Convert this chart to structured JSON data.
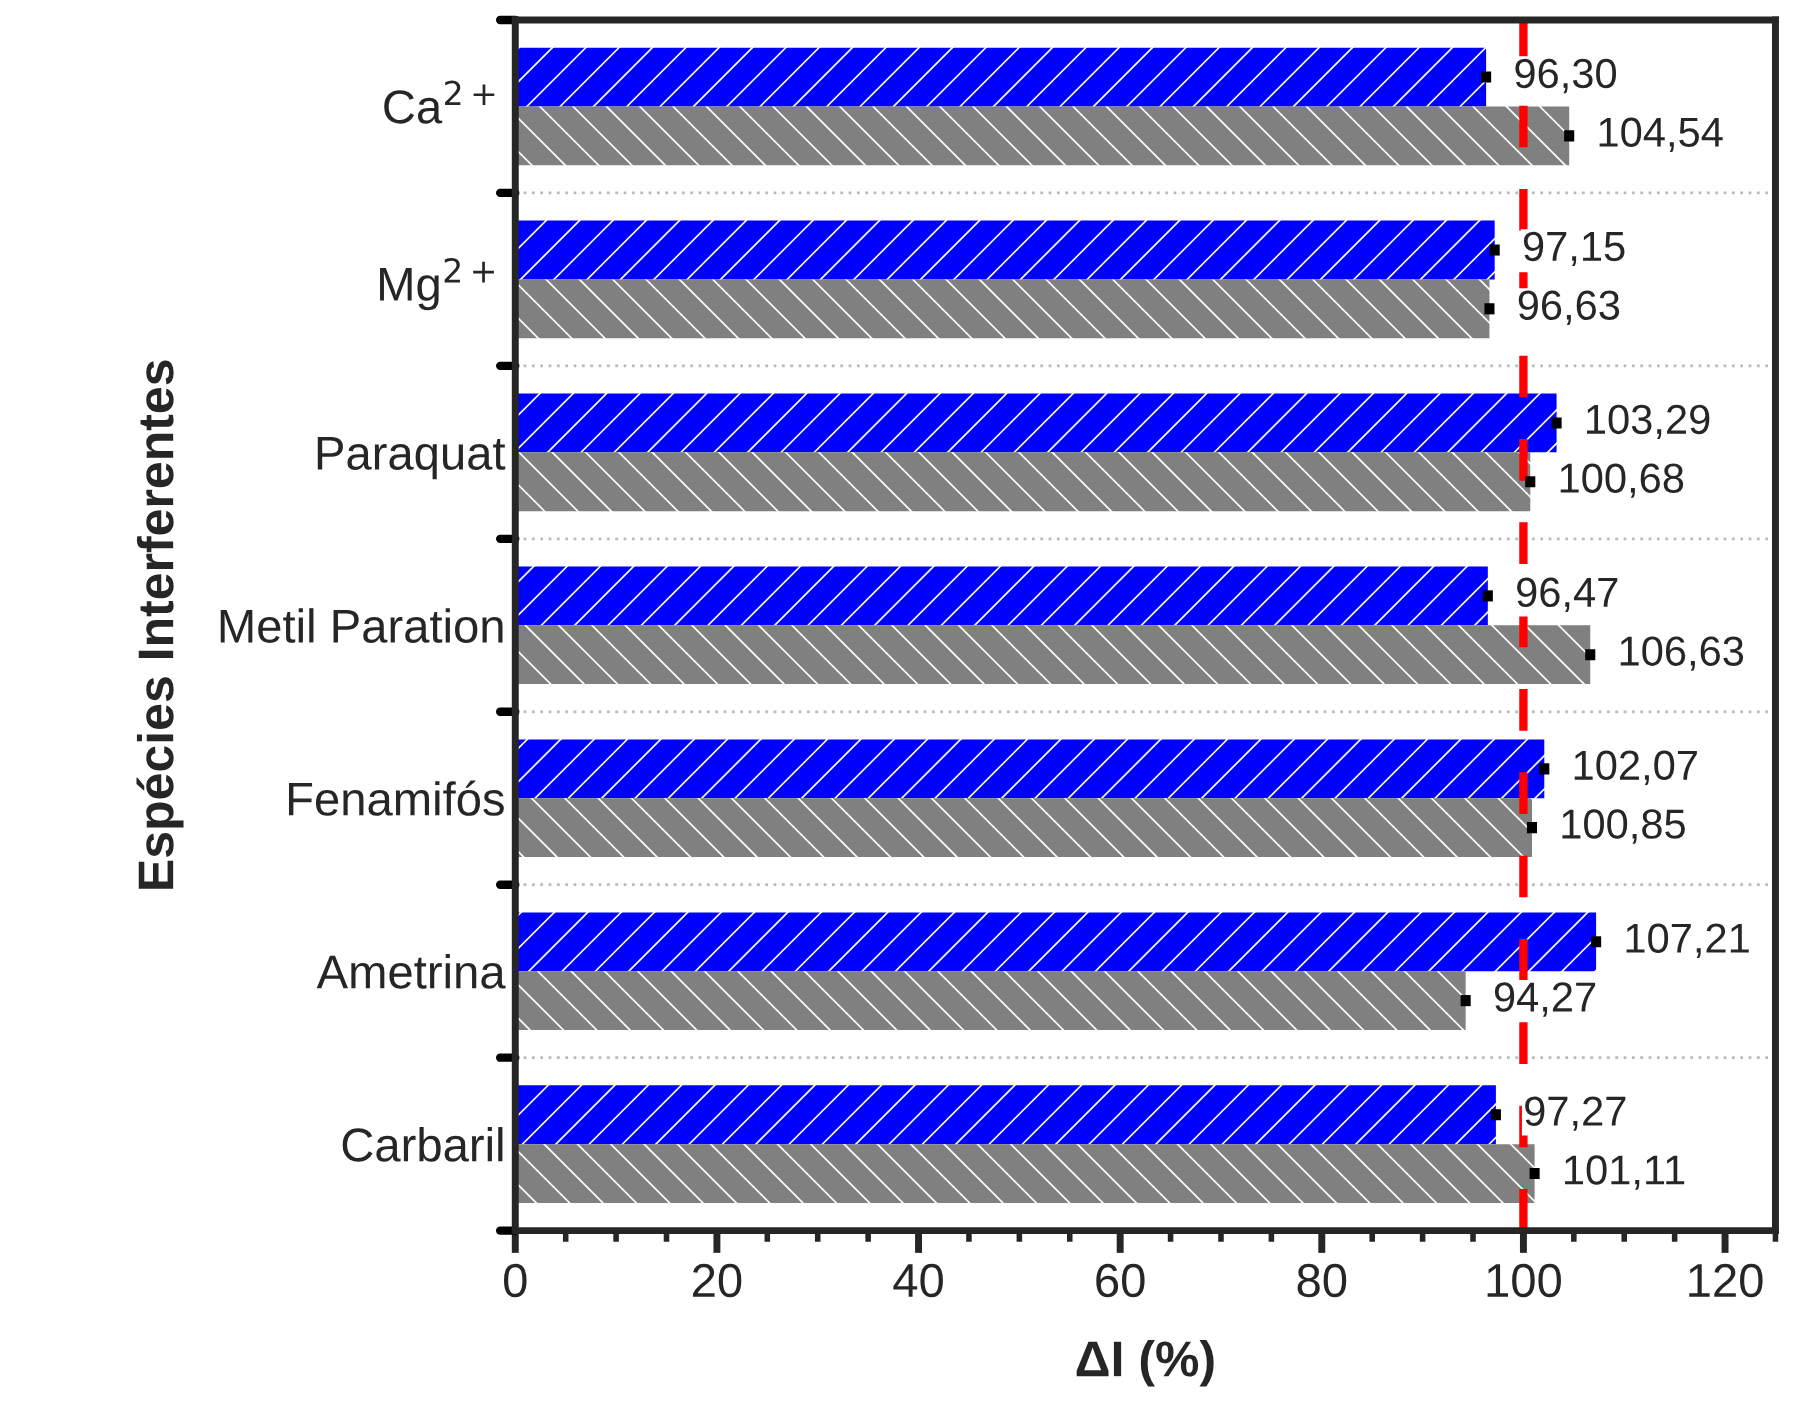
{
  "chart_data": {
    "type": "bar",
    "orientation": "horizontal",
    "xlabel": "ΔI (%)",
    "ylabel": "Espécies Interferentes",
    "categories": [
      "Ca$^{2+}$",
      "Mg$^{2+}$",
      "Paraquat",
      "Metil Paration",
      "Fenamifós",
      "Ametrina",
      "Carbaril"
    ],
    "series": [
      {
        "color": "#0000ff",
        "values": [
          96.3,
          97.15,
          103.29,
          96.47,
          102.07,
          107.21,
          97.27
        ],
        "errors": [
          0.5,
          0.5,
          0.5,
          0.5,
          0.5,
          0.5,
          0.5
        ],
        "value_labels": [
          "96,30",
          "97,15",
          "103,29",
          "96,47",
          "102,07",
          "107,21",
          "97,27"
        ]
      },
      {
        "color": "#808080",
        "values": [
          104.54,
          96.63,
          100.68,
          106.63,
          100.85,
          94.27,
          101.11
        ],
        "errors": [
          0.5,
          0.5,
          0.5,
          0.5,
          0.5,
          0.5,
          0.5
        ],
        "value_labels": [
          "104,54",
          "96,63",
          "100,68",
          "106,63",
          "100,85",
          "94,27",
          "101,11"
        ]
      }
    ],
    "xlim": [
      0,
      125
    ],
    "xticks": [
      0,
      20,
      40,
      60,
      80,
      100,
      120
    ],
    "ref_lines": [
      {
        "axis": "x",
        "value": 100,
        "color": "#ff0000",
        "line_style": "dashed"
      }
    ],
    "grid": "y",
    "legend": false
  }
}
